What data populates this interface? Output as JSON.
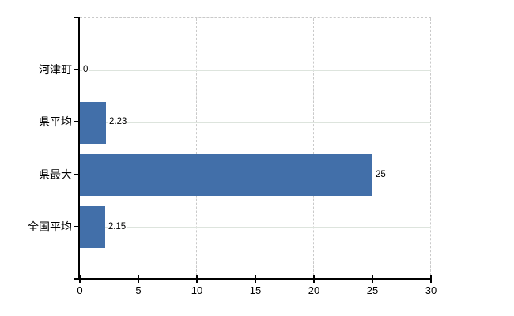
{
  "chart_data": {
    "type": "bar",
    "orientation": "horizontal",
    "title": "",
    "xlabel": "",
    "ylabel": "",
    "categories": [
      "河津町",
      "県平均",
      "県最大",
      "全国平均"
    ],
    "values": [
      0,
      2.23,
      25,
      2.15
    ],
    "value_labels": [
      "0",
      "2.23",
      "25",
      "2.15"
    ],
    "x_ticks": [
      0,
      5,
      10,
      15,
      20,
      25,
      30
    ],
    "x_tick_labels": [
      "0",
      "5",
      "10",
      "15",
      "20",
      "25",
      "30"
    ],
    "xlim": [
      0,
      30
    ],
    "grid": true,
    "legend": "none",
    "colors": {
      "bar": "#426fa9",
      "axis": "#000000",
      "text": "#000000",
      "h_gridline": "#dde4dd",
      "v_gridline": "#c9c9c9",
      "background": "#ffffff"
    }
  }
}
